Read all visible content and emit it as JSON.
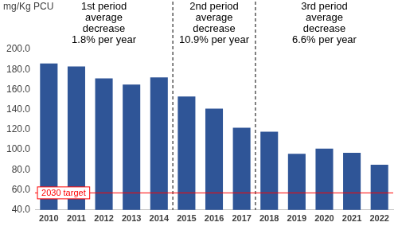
{
  "chart_data": {
    "type": "bar",
    "y_label": "mg/Kg PCU",
    "categories": [
      "2010",
      "2011",
      "2012",
      "2013",
      "2014",
      "2015",
      "2016",
      "2017",
      "2018",
      "2019",
      "2020",
      "2021",
      "2022"
    ],
    "values": [
      186,
      183,
      171,
      165,
      172,
      153,
      141,
      122,
      118,
      96,
      101,
      97,
      85
    ],
    "color": "#2f5597",
    "ylim": [
      40,
      200
    ],
    "yticks": [
      {
        "value": 40,
        "label": "40.0"
      },
      {
        "value": 60,
        "label": "60.0"
      },
      {
        "value": 80,
        "label": "80.0"
      },
      {
        "value": 100,
        "label": "100.0"
      },
      {
        "value": 120,
        "label": "120.0"
      },
      {
        "value": 140,
        "label": "140.0"
      },
      {
        "value": 160,
        "label": "160.0"
      },
      {
        "value": 180,
        "label": "180.0"
      },
      {
        "value": 200,
        "label": "200.0"
      }
    ],
    "grid": false,
    "target": {
      "value": 57,
      "label": "2030 target",
      "color": "#ff0000"
    },
    "annotations": [
      {
        "text": [
          "1st period",
          "average",
          "decrease",
          "1.8% per year"
        ],
        "from": "2010",
        "to": "2014"
      },
      {
        "text": [
          "2nd period",
          "average",
          "decrease",
          "10.9% per year"
        ],
        "from": "2015",
        "to": "2017"
      },
      {
        "text": [
          "3rd period",
          "average",
          "decrease",
          "6.6% per year"
        ],
        "from": "2018",
        "to": "2022"
      }
    ]
  }
}
